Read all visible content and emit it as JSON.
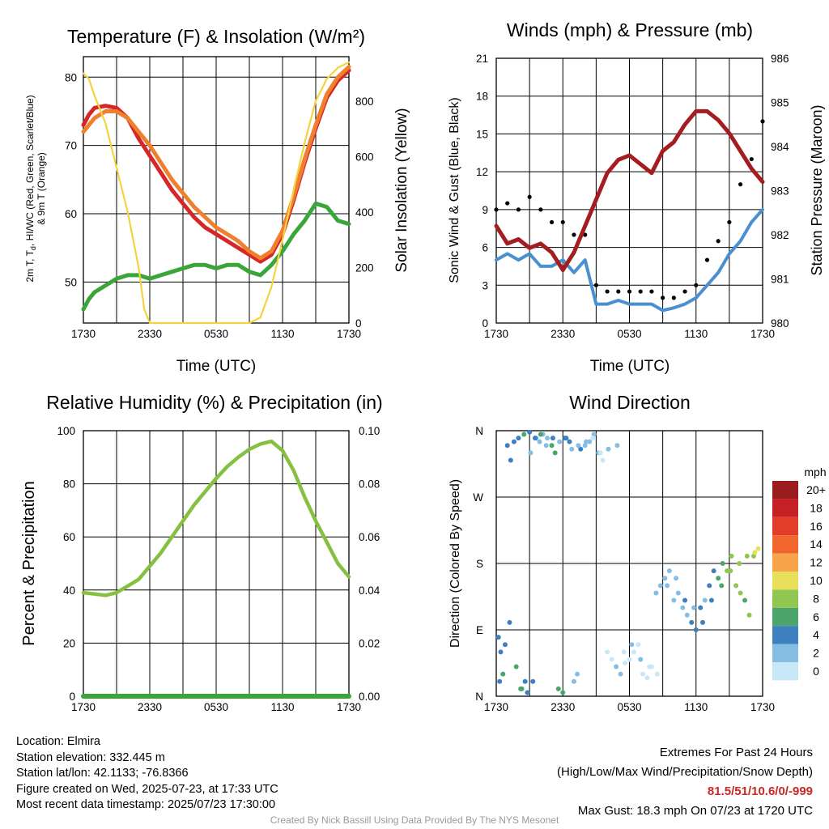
{
  "panels": {
    "temp": {
      "title": "Temperature (F) & Insolation (W/m²)",
      "xlabel": "Time (UTC)",
      "ylabel_left_line1": "2m T, T",
      "ylabel_left_sub": "d",
      "ylabel_left_line1_rest": ", HI/WC (Red, Green, Scarlet/Blue)",
      "ylabel_left_line2": "& 9m T (Orange)",
      "ylabel_right": "Solar Insolation (Yellow)"
    },
    "wind": {
      "title": "Winds (mph) & Pressure (mb)",
      "xlabel": "Time (UTC)",
      "ylabel_left": "Sonic Wind & Gust (Blue, Black)",
      "ylabel_right": "Station Pressure (Maroon)"
    },
    "rh": {
      "title": "Relative Humidity (%) & Precipitation (in)",
      "ylabel_left": "Percent & Precipitation"
    },
    "dir": {
      "title": "Wind Direction",
      "ylabel_left": "Direction (Colored By Speed)",
      "legend_title": "mph"
    }
  },
  "chart_data": [
    {
      "type": "line",
      "id": "temperature",
      "x_ticks": [
        "1730",
        "2330",
        "0530",
        "1130",
        "1730"
      ],
      "x_range_hours": [
        0,
        24
      ],
      "y_left_ticks": [
        50,
        60,
        70,
        80
      ],
      "ylim_left": [
        44,
        83
      ],
      "y_right_ticks": [
        0,
        200,
        400,
        600,
        800
      ],
      "ylim_right": [
        0,
        960
      ],
      "series": [
        {
          "color": "#d62728",
          "axis": "left",
          "x": [
            0,
            0.5,
            1,
            2,
            3,
            4,
            5,
            6,
            7,
            8,
            9,
            10,
            11,
            12,
            13,
            14,
            15,
            16,
            17,
            18,
            19,
            20,
            21,
            22,
            23,
            24
          ],
          "y": [
            73,
            74.5,
            75.5,
            75.8,
            75.5,
            74,
            71,
            68.5,
            66,
            63.5,
            61.5,
            59.5,
            58,
            57,
            56,
            55,
            54,
            53,
            54,
            57,
            62,
            67.5,
            72.5,
            77,
            79.5,
            81
          ]
        },
        {
          "color": "#f07f2e",
          "axis": "left",
          "x": [
            0,
            0.5,
            1,
            2,
            3,
            4,
            5,
            6,
            7,
            8,
            9,
            10,
            11,
            12,
            13,
            14,
            15,
            16,
            17,
            18,
            19,
            20,
            21,
            22,
            23,
            24
          ],
          "y": [
            72,
            73,
            74,
            75,
            75,
            74,
            72,
            70,
            67.5,
            65,
            63,
            61,
            59.5,
            58,
            57,
            56,
            54.5,
            53.5,
            54.5,
            57.5,
            62.5,
            68,
            73,
            77.5,
            80,
            81.5
          ]
        },
        {
          "color": "#3aa63a",
          "axis": "left",
          "x": [
            0,
            0.5,
            1,
            2,
            3,
            4,
            5,
            6,
            7,
            8,
            9,
            10,
            11,
            12,
            13,
            14,
            15,
            16,
            17,
            18,
            19,
            20,
            21,
            22,
            23,
            24
          ],
          "y": [
            46,
            47.5,
            48.5,
            49.5,
            50.5,
            51,
            51,
            50.5,
            51,
            51.5,
            52,
            52.5,
            52.5,
            52,
            52.5,
            52.5,
            51.5,
            51,
            52.5,
            54.5,
            57,
            59,
            61.5,
            61,
            59,
            58.5
          ]
        },
        {
          "color": "#f5d33f",
          "axis": "right",
          "x": [
            0,
            0.5,
            1,
            2,
            3,
            4,
            5,
            5.5,
            6,
            7,
            8,
            9,
            10,
            11,
            12,
            13,
            14,
            15,
            16,
            17,
            18,
            19,
            20,
            21,
            22,
            23,
            24
          ],
          "y": [
            900,
            880,
            820,
            720,
            560,
            400,
            200,
            50,
            0,
            0,
            0,
            0,
            0,
            0,
            0,
            0,
            0,
            0,
            20,
            130,
            300,
            480,
            650,
            800,
            880,
            920,
            940
          ]
        }
      ]
    },
    {
      "type": "line",
      "id": "winds_pressure",
      "x_ticks": [
        "1730",
        "2330",
        "0530",
        "1130",
        "1730"
      ],
      "x_range_hours": [
        0,
        24
      ],
      "y_left_ticks": [
        0,
        3,
        6,
        9,
        12,
        15,
        18,
        21
      ],
      "ylim_left": [
        0,
        21
      ],
      "y_right_ticks": [
        980,
        981,
        982,
        983,
        984,
        985,
        986
      ],
      "ylim_right": [
        980,
        986
      ],
      "series": [
        {
          "color": "#4a90d0",
          "axis": "left",
          "x": [
            0,
            1,
            2,
            3,
            4,
            5,
            6,
            7,
            8,
            9,
            10,
            11,
            12,
            13,
            14,
            15,
            16,
            17,
            18,
            19,
            20,
            21,
            22,
            23,
            24
          ],
          "y": [
            5,
            5.5,
            5,
            5.5,
            4.5,
            4.5,
            5,
            4,
            5,
            1.5,
            1.5,
            1.8,
            1.5,
            1.5,
            1.5,
            1,
            1.2,
            1.5,
            2,
            3,
            4,
            5.5,
            6.5,
            8,
            9
          ]
        },
        {
          "color": "#000000",
          "axis": "left",
          "x": [
            0,
            1,
            2,
            3,
            4,
            5,
            6,
            7,
            8,
            9,
            10,
            11,
            12,
            13,
            14,
            15,
            16,
            17,
            18,
            19,
            20,
            21,
            22,
            23,
            24
          ],
          "y": [
            9,
            9.5,
            9,
            10,
            9,
            8,
            8,
            7,
            7,
            3,
            2.5,
            2.5,
            2.5,
            2.5,
            2.5,
            2,
            2,
            2.5,
            3,
            5,
            6.5,
            8,
            11,
            13,
            16
          ]
        },
        {
          "color": "#a31d21",
          "axis": "right",
          "x": [
            0,
            1,
            2,
            3,
            4,
            5,
            6,
            7,
            8,
            9,
            10,
            11,
            12,
            13,
            14,
            15,
            16,
            17,
            18,
            19,
            20,
            21,
            22,
            23,
            24
          ],
          "y": [
            982.2,
            981.8,
            981.9,
            981.7,
            981.8,
            981.6,
            981.2,
            981.6,
            982.2,
            982.8,
            983.4,
            983.7,
            983.8,
            983.6,
            983.4,
            983.9,
            984.1,
            984.5,
            984.8,
            984.8,
            984.6,
            984.3,
            983.9,
            983.5,
            983.2
          ]
        }
      ]
    },
    {
      "type": "line",
      "id": "humidity_precip",
      "x_ticks": [
        "1730",
        "2330",
        "0530",
        "1130",
        "1730"
      ],
      "x_range_hours": [
        0,
        24
      ],
      "y_left_ticks": [
        0,
        20,
        40,
        60,
        80,
        100
      ],
      "ylim_left": [
        0,
        100
      ],
      "y_right_ticks": [
        "0.00",
        "0.02",
        "0.04",
        "0.06",
        "0.08",
        "0.10"
      ],
      "ylim_right": [
        0,
        0.1
      ],
      "series": [
        {
          "color": "#86c040",
          "axis": "left",
          "x": [
            0,
            1,
            2,
            3,
            4,
            5,
            6,
            7,
            8,
            9,
            10,
            11,
            12,
            13,
            14,
            15,
            16,
            17,
            18,
            19,
            20,
            21,
            22,
            23,
            24
          ],
          "y": [
            39,
            38.5,
            38,
            39,
            41.5,
            44,
            49,
            54,
            60,
            66,
            72,
            77,
            82,
            86.5,
            90,
            93,
            95,
            96,
            92.5,
            85,
            75,
            66,
            58,
            50,
            45
          ]
        },
        {
          "color": "#3aa63a",
          "axis": "right",
          "x": [
            0,
            24
          ],
          "y": [
            0,
            0
          ]
        }
      ]
    },
    {
      "type": "scatter",
      "id": "wind_direction",
      "x_ticks": [
        "1730",
        "2330",
        "0530",
        "1130",
        "1730"
      ],
      "x_range_hours": [
        0,
        24
      ],
      "y_ticks": [
        "N",
        "E",
        "S",
        "W",
        "N"
      ],
      "ylim_degrees": [
        0,
        360
      ],
      "legend_levels": [
        "20+",
        "18",
        "16",
        "14",
        "12",
        "10",
        "8",
        "6",
        "4",
        "2",
        "0"
      ],
      "legend_colors": [
        "#9b1c1f",
        "#c62026",
        "#e23d28",
        "#f1662f",
        "#f7a44b",
        "#e8e05a",
        "#8fc750",
        "#4ca66b",
        "#3e80bf",
        "#86bde3",
        "#c7e8f7"
      ],
      "points_hours": [
        0.2,
        0.4,
        0.6,
        1.0,
        1.3,
        1.6,
        2.0,
        2.3,
        2.5,
        2.8,
        3.0,
        3.3,
        3.6,
        3.9,
        4.2,
        4.6,
        5.0,
        5.3,
        5.6,
        6.0,
        6.3,
        6.6,
        7.0,
        7.3,
        7.6,
        8.0,
        8.4,
        8.8,
        9.2,
        9.6,
        10.0,
        10.4,
        10.8,
        11.2,
        11.6,
        12.0,
        12.4,
        12.8,
        13.2,
        13.6,
        14.0,
        14.4,
        14.8,
        15.2,
        15.6,
        16.0,
        16.4,
        16.8,
        17.2,
        17.6,
        18.0,
        18.4,
        18.8,
        19.2,
        19.6,
        20.0,
        20.4,
        20.8,
        21.2,
        21.6,
        22.0,
        22.4,
        22.8,
        23.2,
        23.6,
        0.3,
        0.8,
        1.2,
        1.8,
        2.2,
        2.6,
        3.1,
        3.5,
        4.0,
        4.5,
        5.1,
        5.7,
        6.2,
        6.8,
        7.4,
        8.1,
        8.7,
        9.4,
        10.1,
        10.9,
        11.5,
        12.2,
        13.0,
        13.8,
        14.5,
        15.4,
        16.2,
        17.0,
        17.8,
        18.6,
        19.4,
        20.3,
        21.1,
        21.9,
        22.6,
        23.3
      ],
      "points_degrees": [
        80,
        60,
        30,
        340,
        320,
        345,
        350,
        10,
        355,
        5,
        358,
        20,
        350,
        345,
        355,
        350,
        340,
        330,
        10,
        5,
        350,
        345,
        20,
        30,
        335,
        340,
        345,
        355,
        330,
        320,
        60,
        50,
        40,
        30,
        45,
        50,
        60,
        70,
        30,
        25,
        40,
        140,
        150,
        160,
        170,
        130,
        140,
        120,
        110,
        100,
        90,
        120,
        130,
        150,
        170,
        160,
        180,
        170,
        190,
        150,
        140,
        130,
        110,
        190,
        200,
        20,
        70,
        100,
        40,
        10,
        20,
        330,
        350,
        355,
        340,
        350,
        345,
        350,
        335,
        340,
        345,
        350,
        330,
        335,
        340,
        60,
        70,
        50,
        40,
        30,
        150,
        160,
        130,
        120,
        100,
        130,
        150,
        170,
        180,
        190,
        195
      ],
      "points_speed": [
        4,
        4,
        6,
        5,
        5,
        4,
        4,
        6,
        6,
        5,
        4,
        4,
        3,
        3,
        2,
        2,
        6,
        6,
        6,
        6,
        4,
        4,
        2,
        2,
        4,
        3,
        3,
        2,
        2,
        1,
        1,
        1,
        2,
        2,
        1,
        1,
        1,
        0,
        0,
        1,
        1,
        2,
        2,
        2,
        3,
        3,
        2,
        2,
        3,
        4,
        4,
        4,
        3,
        4,
        5,
        7,
        7,
        8,
        8,
        9,
        8,
        7,
        8,
        9,
        10,
        4,
        5,
        4,
        6,
        6,
        5,
        3,
        5,
        6,
        3,
        4,
        3,
        4,
        2,
        2,
        3,
        1,
        1,
        2,
        2,
        1,
        2,
        2,
        1,
        1,
        2,
        3,
        4,
        3,
        4,
        5,
        7,
        8,
        8,
        9,
        10
      ]
    }
  ],
  "footer": {
    "location": "Location: Elmira",
    "elevation": "Station elevation: 332.445 m",
    "latlon": "Station lat/lon: 42.1133; -76.8366",
    "created": "Figure created on Wed, 2025-07-23, at 17:33 UTC",
    "recent": "Most recent data timestamp: 2025/07/23 17:30:00",
    "extremes_title": "Extremes For Past 24 Hours",
    "extremes_sub": "(High/Low/Max Wind/Precipitation/Snow Depth)",
    "extremes_values": "81.5/51/10.6/0/-999",
    "max_gust": "Max Gust: 18.3 mph On 07/23 at 1720 UTC",
    "credit": "Created By Nick Bassill Using Data Provided By The NYS Mesonet"
  }
}
